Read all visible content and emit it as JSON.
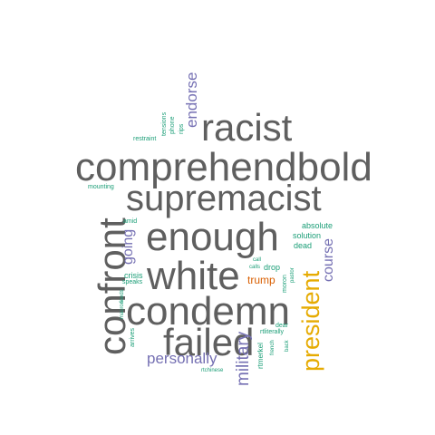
{
  "palette": {
    "large": "#5f5f5f",
    "medium": "#7570b3",
    "small": "#1b9e77",
    "president": "#e6ab02",
    "trump": "#d95f02"
  },
  "words": [
    {
      "text": "comprehendbold",
      "color": "large"
    },
    {
      "text": "supremacist",
      "color": "large"
    },
    {
      "text": "enough",
      "color": "large"
    },
    {
      "text": "condemn",
      "color": "large"
    },
    {
      "text": "white",
      "color": "large"
    },
    {
      "text": "racist",
      "color": "large"
    },
    {
      "text": "failed",
      "color": "large"
    },
    {
      "text": "confront",
      "color": "large"
    },
    {
      "text": "president",
      "color": "president"
    },
    {
      "text": "military",
      "color": "medium"
    },
    {
      "text": "personally",
      "color": "medium"
    },
    {
      "text": "endorse",
      "color": "medium"
    },
    {
      "text": "going",
      "color": "medium"
    },
    {
      "text": "course",
      "color": "medium"
    },
    {
      "text": "trump",
      "color": "trump"
    },
    {
      "text": "absolute",
      "color": "small"
    },
    {
      "text": "solution",
      "color": "small"
    },
    {
      "text": "dead",
      "color": "small"
    },
    {
      "text": "drop",
      "color": "small"
    },
    {
      "text": "crisis",
      "color": "small"
    },
    {
      "text": "amid",
      "color": "small"
    },
    {
      "text": "mounting",
      "color": "small"
    },
    {
      "text": "restraint",
      "color": "small"
    },
    {
      "text": "tensions",
      "color": "small"
    },
    {
      "text": "phone",
      "color": "small"
    },
    {
      "text": "rips",
      "color": "small"
    },
    {
      "text": "speaks",
      "color": "small"
    },
    {
      "text": "macron",
      "color": "small"
    },
    {
      "text": "feeds",
      "color": "small"
    },
    {
      "text": "arrives",
      "color": "small"
    },
    {
      "text": "rtchinese",
      "color": "small"
    },
    {
      "text": "rtmerkel",
      "color": "small"
    },
    {
      "text": "rtliterally",
      "color": "small"
    },
    {
      "text": "dear",
      "color": "small"
    },
    {
      "text": "french",
      "color": "small"
    },
    {
      "text": "back",
      "color": "small"
    },
    {
      "text": "calls",
      "color": "small"
    },
    {
      "text": "call",
      "color": "small"
    },
    {
      "text": "moron",
      "color": "small"
    },
    {
      "text": "pastor",
      "color": "small"
    }
  ]
}
